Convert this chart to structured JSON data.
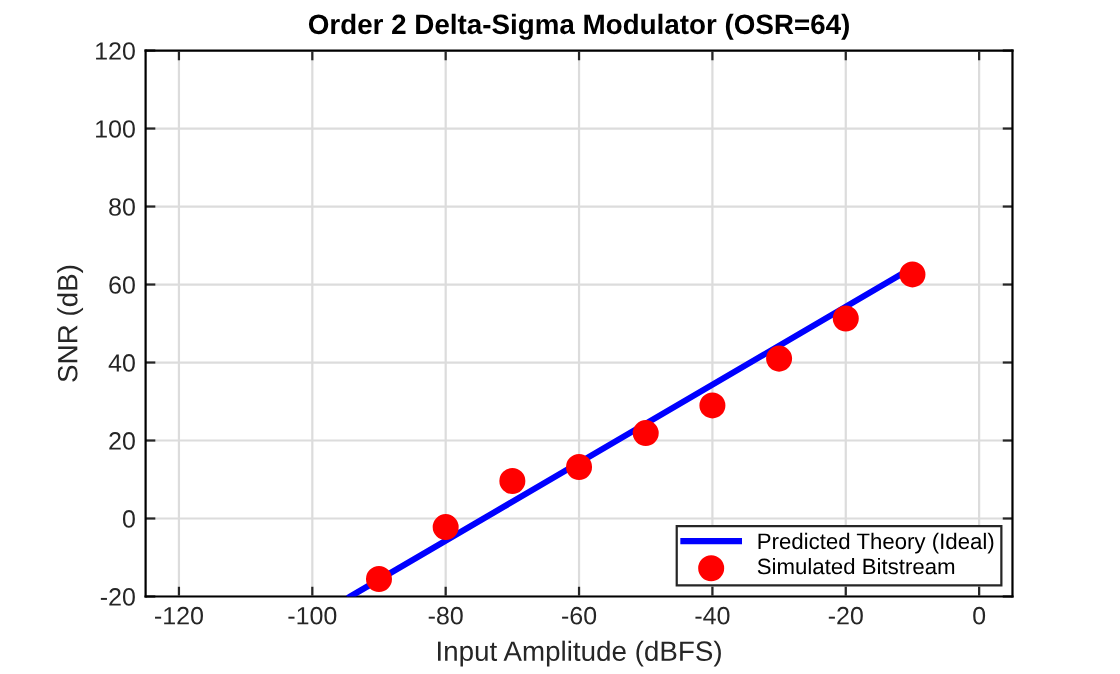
{
  "chart_data": {
    "type": "scatter",
    "title": "Order 2 Delta-Sigma Modulator (OSR=64)",
    "xlabel": "Input Amplitude (dBFS)",
    "ylabel": "SNR (dB)",
    "series": [
      {
        "name": "Predicted Theory (Ideal)",
        "type": "line",
        "color": "#0000ff",
        "x": [
          -94.3,
          -10
        ],
        "values": [
          -20,
          64.3
        ],
        "marker": "none"
      },
      {
        "name": "Simulated Bitstream",
        "color": "#ff0000",
        "x": [
          -90,
          -80,
          -70,
          -60,
          -50,
          -40,
          -30,
          -20,
          -10
        ],
        "values": [
          -15.5,
          -2.2,
          9.6,
          13.2,
          21.9,
          29.0,
          41.0,
          51.3,
          62.6
        ],
        "marker": "circle"
      }
    ],
    "xlim": [
      -125,
      5
    ],
    "xticks": [
      -120,
      -100,
      -80,
      -60,
      -40,
      -20,
      0
    ],
    "ylim": [
      -20,
      120
    ],
    "yticks": [
      -20,
      0,
      20,
      40,
      60,
      80,
      100,
      120
    ],
    "grid": true,
    "legend": "bottom right"
  }
}
